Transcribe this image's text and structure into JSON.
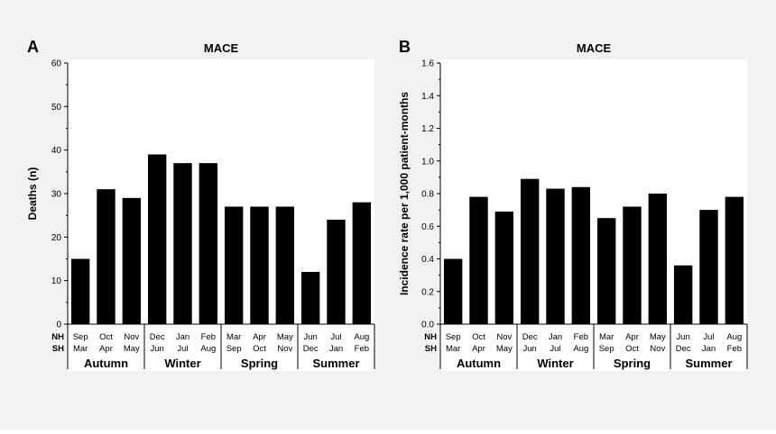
{
  "chart_data": [
    {
      "type": "bar",
      "panel_label": "A",
      "title": "MACE",
      "ylabel": "Deaths (n)",
      "ylim": [
        0,
        60
      ],
      "yticks": [
        0,
        10,
        20,
        30,
        40,
        50,
        60
      ],
      "grid": false,
      "row_labels": [
        "NH",
        "SH"
      ],
      "categories_nh": [
        "Sep",
        "Oct",
        "Nov",
        "Dec",
        "Jan",
        "Feb",
        "Mar",
        "Apr",
        "May",
        "Jun",
        "Jul",
        "Aug"
      ],
      "categories_sh": [
        "Mar",
        "Apr",
        "May",
        "Jun",
        "Jul",
        "Aug",
        "Sep",
        "Oct",
        "Nov",
        "Dec",
        "Jan",
        "Feb"
      ],
      "seasons": [
        "Autumn",
        "Winter",
        "Spring",
        "Summer"
      ],
      "values": [
        15,
        31,
        29,
        39,
        37,
        37,
        27,
        27,
        27,
        12,
        24,
        28
      ],
      "bar_color": "#000000"
    },
    {
      "type": "bar",
      "panel_label": "B",
      "title": "MACE",
      "ylabel": "Incidence rate per 1,000 patient-months",
      "ylim": [
        0,
        1.6
      ],
      "yticks": [
        "0.0",
        "0.2",
        "0.4",
        "0.6",
        "0.8",
        "1.0",
        "1.2",
        "1.4",
        "1.6"
      ],
      "grid": false,
      "row_labels": [
        "NH",
        "SH"
      ],
      "categories_nh": [
        "Sep",
        "Oct",
        "Nov",
        "Dec",
        "Jan",
        "Feb",
        "Mar",
        "Apr",
        "May",
        "Jun",
        "Jul",
        "Aug"
      ],
      "categories_sh": [
        "Mar",
        "Apr",
        "May",
        "Jun",
        "Jul",
        "Aug",
        "Sep",
        "Oct",
        "Nov",
        "Dec",
        "Jan",
        "Feb"
      ],
      "seasons": [
        "Autumn",
        "Winter",
        "Spring",
        "Summer"
      ],
      "values": [
        0.4,
        0.78,
        0.69,
        0.89,
        0.83,
        0.84,
        0.65,
        0.72,
        0.8,
        0.36,
        0.7,
        0.78
      ],
      "bar_color": "#000000"
    }
  ]
}
